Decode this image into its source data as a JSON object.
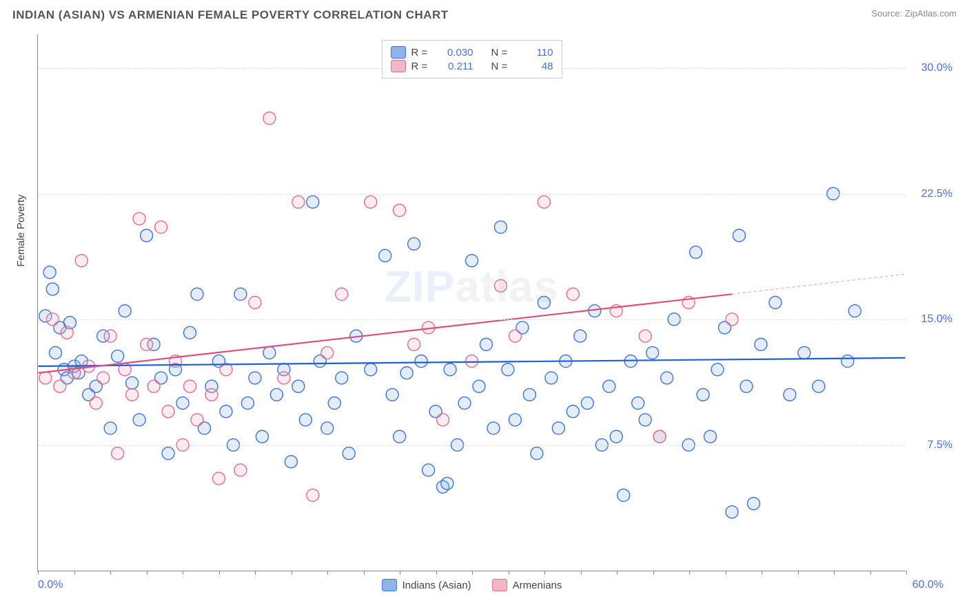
{
  "title": "INDIAN (ASIAN) VS ARMENIAN FEMALE POVERTY CORRELATION CHART",
  "source": "Source: ZipAtlas.com",
  "ylabel": "Female Poverty",
  "watermark_part1": "ZIP",
  "watermark_part2": "atlas",
  "chart": {
    "type": "scatter",
    "xlim": [
      0,
      60
    ],
    "ylim": [
      0,
      32
    ],
    "x_tick_labels": {
      "0": "0.0%",
      "60": "60.0%"
    },
    "y_ticks": [
      7.5,
      15.0,
      22.5,
      30.0
    ],
    "y_tick_labels": [
      "7.5%",
      "15.0%",
      "22.5%",
      "30.0%"
    ],
    "xtick_minor_step": 2.5,
    "background_color": "#ffffff",
    "grid_color": "#dddddd",
    "axis_color": "#888888",
    "marker_radius": 9,
    "marker_stroke_width": 1.4,
    "marker_fill_opacity": 0.25,
    "trend_line_width": 2.2,
    "series": [
      {
        "name": "Indians (Asian)",
        "key": "indians",
        "fill": "#8fb4e8",
        "stroke": "#3f72d8",
        "trend_color": "#1e5fd6",
        "R": "0.030",
        "N": "110",
        "trend": {
          "x0": 0,
          "y0": 12.2,
          "x1": 60,
          "y1": 12.7
        },
        "points": [
          [
            0.5,
            15.2
          ],
          [
            0.8,
            17.8
          ],
          [
            1.0,
            16.8
          ],
          [
            1.2,
            13.0
          ],
          [
            1.5,
            14.5
          ],
          [
            1.8,
            12.0
          ],
          [
            2.0,
            11.5
          ],
          [
            2.2,
            14.8
          ],
          [
            2.5,
            12.2
          ],
          [
            2.8,
            11.8
          ],
          [
            3.0,
            12.5
          ],
          [
            3.5,
            10.5
          ],
          [
            4.0,
            11.0
          ],
          [
            4.5,
            14.0
          ],
          [
            5.0,
            8.5
          ],
          [
            5.5,
            12.8
          ],
          [
            6.0,
            15.5
          ],
          [
            6.5,
            11.2
          ],
          [
            7.0,
            9.0
          ],
          [
            7.5,
            20.0
          ],
          [
            8.0,
            13.5
          ],
          [
            8.5,
            11.5
          ],
          [
            9.0,
            7.0
          ],
          [
            9.5,
            12.0
          ],
          [
            10.0,
            10.0
          ],
          [
            10.5,
            14.2
          ],
          [
            11.0,
            16.5
          ],
          [
            11.5,
            8.5
          ],
          [
            12.0,
            11.0
          ],
          [
            12.5,
            12.5
          ],
          [
            13.0,
            9.5
          ],
          [
            13.5,
            7.5
          ],
          [
            14.0,
            16.5
          ],
          [
            14.5,
            10.0
          ],
          [
            15.0,
            11.5
          ],
          [
            15.5,
            8.0
          ],
          [
            16.0,
            13.0
          ],
          [
            16.5,
            10.5
          ],
          [
            17.0,
            12.0
          ],
          [
            17.5,
            6.5
          ],
          [
            18.0,
            11.0
          ],
          [
            18.5,
            9.0
          ],
          [
            19.0,
            22.0
          ],
          [
            19.5,
            12.5
          ],
          [
            20.0,
            8.5
          ],
          [
            20.5,
            10.0
          ],
          [
            21.0,
            11.5
          ],
          [
            21.5,
            7.0
          ],
          [
            22.0,
            14.0
          ],
          [
            23.0,
            12.0
          ],
          [
            24.0,
            18.8
          ],
          [
            24.5,
            10.5
          ],
          [
            25.0,
            8.0
          ],
          [
            25.5,
            11.8
          ],
          [
            26.0,
            19.5
          ],
          [
            26.5,
            12.5
          ],
          [
            27.0,
            6.0
          ],
          [
            27.5,
            9.5
          ],
          [
            28.0,
            5.0
          ],
          [
            28.3,
            5.2
          ],
          [
            28.5,
            12.0
          ],
          [
            29.0,
            7.5
          ],
          [
            29.5,
            10.0
          ],
          [
            30.0,
            18.5
          ],
          [
            30.5,
            11.0
          ],
          [
            31.0,
            13.5
          ],
          [
            31.5,
            8.5
          ],
          [
            32.0,
            20.5
          ],
          [
            32.5,
            12.0
          ],
          [
            33.0,
            9.0
          ],
          [
            33.5,
            14.5
          ],
          [
            34.0,
            10.5
          ],
          [
            34.5,
            7.0
          ],
          [
            35.0,
            16.0
          ],
          [
            35.5,
            11.5
          ],
          [
            36.0,
            8.5
          ],
          [
            36.5,
            12.5
          ],
          [
            37.0,
            9.5
          ],
          [
            37.5,
            14.0
          ],
          [
            38.0,
            10.0
          ],
          [
            38.5,
            15.5
          ],
          [
            39.0,
            7.5
          ],
          [
            39.5,
            11.0
          ],
          [
            40.0,
            8.0
          ],
          [
            40.5,
            4.5
          ],
          [
            41.0,
            12.5
          ],
          [
            41.5,
            10.0
          ],
          [
            42.0,
            9.0
          ],
          [
            42.5,
            13.0
          ],
          [
            43.0,
            8.0
          ],
          [
            43.5,
            11.5
          ],
          [
            44.0,
            15.0
          ],
          [
            45.0,
            7.5
          ],
          [
            45.5,
            19.0
          ],
          [
            46.0,
            10.5
          ],
          [
            46.5,
            8.0
          ],
          [
            47.0,
            12.0
          ],
          [
            47.5,
            14.5
          ],
          [
            48.0,
            3.5
          ],
          [
            48.5,
            20.0
          ],
          [
            49.0,
            11.0
          ],
          [
            49.5,
            4.0
          ],
          [
            50.0,
            13.5
          ],
          [
            51.0,
            16.0
          ],
          [
            52.0,
            10.5
          ],
          [
            53.0,
            13.0
          ],
          [
            54.0,
            11.0
          ],
          [
            55.0,
            22.5
          ],
          [
            56.0,
            12.5
          ],
          [
            56.5,
            15.5
          ]
        ]
      },
      {
        "name": "Armenians",
        "key": "armenians",
        "fill": "#f4b5c5",
        "stroke": "#e46b8d",
        "trend_color": "#e04d7a",
        "R": "0.211",
        "N": "48",
        "trend": {
          "x0": 0,
          "y0": 11.8,
          "x1": 48,
          "y1": 16.5
        },
        "trend_extend": {
          "x0": 48,
          "y0": 16.5,
          "x1": 60,
          "y1": 17.7
        },
        "points": [
          [
            0.5,
            11.5
          ],
          [
            1.0,
            15.0
          ],
          [
            1.5,
            11.0
          ],
          [
            2.0,
            14.2
          ],
          [
            2.5,
            11.8
          ],
          [
            3.0,
            18.5
          ],
          [
            3.5,
            12.2
          ],
          [
            4.0,
            10.0
          ],
          [
            4.5,
            11.5
          ],
          [
            5.0,
            14.0
          ],
          [
            5.5,
            7.0
          ],
          [
            6.0,
            12.0
          ],
          [
            6.5,
            10.5
          ],
          [
            7.0,
            21.0
          ],
          [
            7.5,
            13.5
          ],
          [
            8.0,
            11.0
          ],
          [
            8.5,
            20.5
          ],
          [
            9.0,
            9.5
          ],
          [
            9.5,
            12.5
          ],
          [
            10.0,
            7.5
          ],
          [
            10.5,
            11.0
          ],
          [
            11.0,
            9.0
          ],
          [
            12.0,
            10.5
          ],
          [
            12.5,
            5.5
          ],
          [
            13.0,
            12.0
          ],
          [
            14.0,
            6.0
          ],
          [
            15.0,
            16.0
          ],
          [
            16.0,
            27.0
          ],
          [
            17.0,
            11.5
          ],
          [
            18.0,
            22.0
          ],
          [
            19.0,
            4.5
          ],
          [
            20.0,
            13.0
          ],
          [
            21.0,
            16.5
          ],
          [
            23.0,
            22.0
          ],
          [
            25.0,
            21.5
          ],
          [
            26.0,
            13.5
          ],
          [
            27.0,
            14.5
          ],
          [
            28.0,
            9.0
          ],
          [
            30.0,
            12.5
          ],
          [
            32.0,
            17.0
          ],
          [
            33.0,
            14.0
          ],
          [
            35.0,
            22.0
          ],
          [
            37.0,
            16.5
          ],
          [
            40.0,
            15.5
          ],
          [
            42.0,
            14.0
          ],
          [
            43.0,
            8.0
          ],
          [
            45.0,
            16.0
          ],
          [
            48.0,
            15.0
          ]
        ]
      }
    ]
  },
  "legend_top": {
    "rows": [
      {
        "swatch": "indians",
        "r_label": "R =",
        "r_val": "0.030",
        "n_label": "N =",
        "n_val": "110"
      },
      {
        "swatch": "armenians",
        "r_label": "R =",
        "r_val": "0.211",
        "n_label": "N =",
        "n_val": "48"
      }
    ]
  },
  "legend_bottom": {
    "items": [
      {
        "swatch": "indians",
        "label": "Indians (Asian)"
      },
      {
        "swatch": "armenians",
        "label": "Armenians"
      }
    ]
  }
}
